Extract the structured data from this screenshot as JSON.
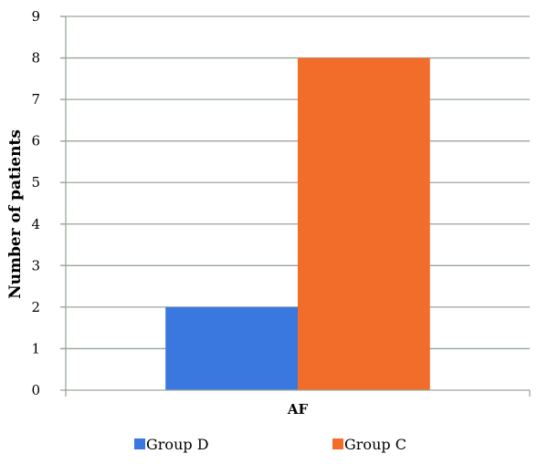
{
  "chart_data": {
    "type": "bar",
    "categories": [
      "AF"
    ],
    "series": [
      {
        "name": "Group D",
        "values": [
          2
        ],
        "color": "#3a78e0"
      },
      {
        "name": "Group C",
        "values": [
          8
        ],
        "color": "#f26d2a"
      }
    ],
    "ylabel": "Number of patients",
    "ylim": [
      0,
      9
    ],
    "yticks": [
      "0",
      "1",
      "2",
      "3",
      "4",
      "5",
      "6",
      "7",
      "8",
      "9"
    ],
    "grid": true,
    "legend_position": "bottom",
    "grid_color": "#9aa79a"
  }
}
